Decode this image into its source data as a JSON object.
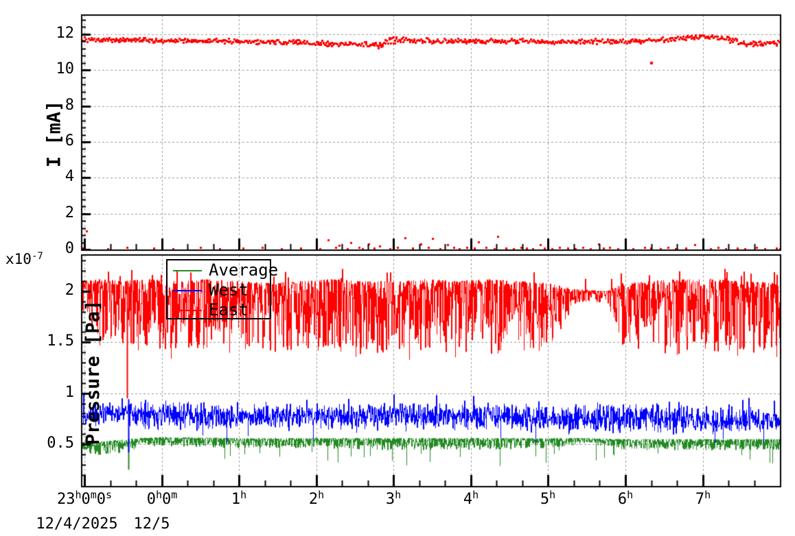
{
  "figure": {
    "background": "#ffffff",
    "axis_color": "#000000",
    "grid_color": "#9a9a9a"
  },
  "x_axis": {
    "range_hours_from_23h": [
      -0.036,
      9.008
    ],
    "minor_divisions_per_hour": 3,
    "ticks": [
      {
        "t": 0,
        "parts": [
          "23",
          "h",
          "0",
          "m",
          "0",
          "s"
        ]
      },
      {
        "t": 1,
        "parts": [
          "0",
          "h",
          "0",
          "m"
        ]
      },
      {
        "t": 2,
        "parts": [
          "1",
          "h"
        ]
      },
      {
        "t": 3,
        "parts": [
          "2",
          "h"
        ]
      },
      {
        "t": 4,
        "parts": [
          "3",
          "h"
        ]
      },
      {
        "t": 5,
        "parts": [
          "4",
          "h"
        ]
      },
      {
        "t": 6,
        "parts": [
          "5",
          "h"
        ]
      },
      {
        "t": 7,
        "parts": [
          "6",
          "h"
        ]
      },
      {
        "t": 8,
        "parts": [
          "7",
          "h"
        ]
      }
    ],
    "date_labels": [
      {
        "text": "12/4/2025",
        "t": -0.1
      },
      {
        "text": "12/5",
        "t": 0.87
      }
    ]
  },
  "legend": {
    "entries": [
      {
        "label": "Average",
        "color": "#228B22"
      },
      {
        "label": "West",
        "color": "#0000ff"
      },
      {
        "label": "East",
        "color": "#ff0000"
      }
    ]
  },
  "chart_data": [
    {
      "id": "beam-current",
      "type": "scatter",
      "ylabel": "I [mA]",
      "ylim": [
        0,
        13.07
      ],
      "yticks": [
        {
          "v": 0,
          "label": "0"
        },
        {
          "v": 2,
          "label": "2"
        },
        {
          "v": 4,
          "label": "4"
        },
        {
          "v": 6,
          "label": "6"
        },
        {
          "v": 8,
          "label": "8"
        },
        {
          "v": 10,
          "label": "10"
        },
        {
          "v": 12,
          "label": "12"
        }
      ],
      "y_minor_step": 0.4,
      "marker_color": "#ff0000",
      "band": {
        "t": [
          -0.04,
          0.5,
          1.0,
          1.5,
          2.0,
          2.5,
          3.0,
          3.3,
          3.6,
          3.85,
          3.9,
          4.1,
          4.4,
          4.8,
          5.2,
          5.6,
          6.0,
          6.4,
          6.8,
          7.2,
          7.5,
          7.8,
          8.0,
          8.15,
          8.35,
          8.55,
          8.75,
          9.01
        ],
        "mean": [
          11.7,
          11.7,
          11.67,
          11.65,
          11.62,
          11.58,
          11.52,
          11.47,
          11.42,
          11.4,
          11.66,
          11.68,
          11.64,
          11.62,
          11.62,
          11.64,
          11.62,
          11.6,
          11.62,
          11.65,
          11.7,
          11.8,
          11.86,
          11.85,
          11.72,
          11.5,
          11.47,
          11.56
        ],
        "spread": [
          0.06,
          0.06,
          0.06,
          0.06,
          0.06,
          0.07,
          0.07,
          0.07,
          0.07,
          0.07,
          0.12,
          0.1,
          0.08,
          0.07,
          0.07,
          0.07,
          0.07,
          0.07,
          0.07,
          0.06,
          0.07,
          0.07,
          0.07,
          0.08,
          0.1,
          0.09,
          0.08,
          0.07
        ]
      },
      "low_points": [
        [
          -0.02,
          0.06
        ],
        [
          0.03,
          1.02
        ],
        [
          0.3,
          0.05
        ],
        [
          0.55,
          0.1
        ],
        [
          0.9,
          0.06
        ],
        [
          1.0,
          0.28
        ],
        [
          1.15,
          0.05
        ],
        [
          1.5,
          0.1
        ],
        [
          1.75,
          0.05
        ],
        [
          2.0,
          0.32
        ],
        [
          2.05,
          0.06
        ],
        [
          2.3,
          0.1
        ],
        [
          2.55,
          0.05
        ],
        [
          2.8,
          0.08
        ],
        [
          3.0,
          0.3
        ],
        [
          3.05,
          0.05
        ],
        [
          3.15,
          0.55
        ],
        [
          3.25,
          0.1
        ],
        [
          3.3,
          0.22
        ],
        [
          3.4,
          0.05
        ],
        [
          3.45,
          0.38
        ],
        [
          3.55,
          0.12
        ],
        [
          3.6,
          0.05
        ],
        [
          3.68,
          0.3
        ],
        [
          3.75,
          0.08
        ],
        [
          3.82,
          0.18
        ],
        [
          3.95,
          0.05
        ],
        [
          4.0,
          0.45
        ],
        [
          4.05,
          0.1
        ],
        [
          4.15,
          0.65
        ],
        [
          4.25,
          0.06
        ],
        [
          4.35,
          0.3
        ],
        [
          4.45,
          0.1
        ],
        [
          4.5,
          0.6
        ],
        [
          4.6,
          0.05
        ],
        [
          4.7,
          0.25
        ],
        [
          4.78,
          0.1
        ],
        [
          4.85,
          0.05
        ],
        [
          4.95,
          0.12
        ],
        [
          5.05,
          0.06
        ],
        [
          5.1,
          0.42
        ],
        [
          5.2,
          0.1
        ],
        [
          5.3,
          0.05
        ],
        [
          5.35,
          0.72
        ],
        [
          5.45,
          0.08
        ],
        [
          5.55,
          0.05
        ],
        [
          5.65,
          0.1
        ],
        [
          5.72,
          0.06
        ],
        [
          5.8,
          0.05
        ],
        [
          5.9,
          0.28
        ],
        [
          5.95,
          0.08
        ],
        [
          6.05,
          0.05
        ],
        [
          6.15,
          0.1
        ],
        [
          6.25,
          0.06
        ],
        [
          6.35,
          0.05
        ],
        [
          6.45,
          0.12
        ],
        [
          6.55,
          0.05
        ],
        [
          6.65,
          0.3
        ],
        [
          6.72,
          0.06
        ],
        [
          6.8,
          0.1
        ],
        [
          6.9,
          0.05
        ],
        [
          7.0,
          0.08
        ],
        [
          7.1,
          0.05
        ],
        [
          7.25,
          0.1
        ],
        [
          7.33,
          0.06
        ],
        [
          7.45,
          0.05
        ],
        [
          7.55,
          0.1
        ],
        [
          7.65,
          0.05
        ],
        [
          7.78,
          0.08
        ],
        [
          7.9,
          0.26
        ],
        [
          8.0,
          0.06
        ],
        [
          8.1,
          0.05
        ],
        [
          8.2,
          0.1
        ],
        [
          8.3,
          0.05
        ],
        [
          8.45,
          0.08
        ],
        [
          8.55,
          0.05
        ],
        [
          8.7,
          0.1
        ],
        [
          8.8,
          0.05
        ],
        [
          8.95,
          0.07
        ],
        [
          9.0,
          0.05
        ]
      ],
      "outliers": [
        [
          7.33,
          10.42
        ]
      ]
    },
    {
      "id": "pressure",
      "type": "line",
      "ylabel": "Pressure [Pa]",
      "y_exponent_parts": [
        "x10",
        "-7"
      ],
      "ylim": [
        0.083,
        2.356
      ],
      "yticks": [
        {
          "v": 0.5,
          "label": "0.5"
        },
        {
          "v": 1,
          "label": "1"
        },
        {
          "v": 1.5,
          "label": "1.5"
        },
        {
          "v": 2,
          "label": "2"
        }
      ],
      "y_minor_step": 0.1,
      "series": [
        {
          "name": "Average",
          "color": "#228B22",
          "bias": "high",
          "t": [
            -0.04,
            0.15,
            0.4,
            0.7,
            1,
            2,
            3,
            4,
            5,
            6,
            6.5,
            7,
            8,
            9.01
          ],
          "lo": [
            0.44,
            0.38,
            0.4,
            0.46,
            0.48,
            0.46,
            0.46,
            0.44,
            0.44,
            0.46,
            0.5,
            0.44,
            0.44,
            0.44
          ],
          "hi": [
            0.52,
            0.52,
            0.54,
            0.56,
            0.57,
            0.56,
            0.56,
            0.56,
            0.56,
            0.56,
            0.56,
            0.55,
            0.55,
            0.55
          ],
          "spike_rate": 0.04,
          "spike_depth": 0.16,
          "up_rate": 0,
          "up_amp": 0,
          "spikes": [
            [
              0.57,
              0.25
            ]
          ]
        },
        {
          "name": "West",
          "color": "#0000ff",
          "bias": "mid",
          "t": [
            -0.04,
            1,
            2,
            3,
            4,
            5,
            6,
            7,
            8,
            9.01
          ],
          "lo": [
            0.68,
            0.62,
            0.63,
            0.62,
            0.63,
            0.62,
            0.6,
            0.58,
            0.58,
            0.58
          ],
          "hi": [
            0.93,
            0.95,
            0.93,
            0.92,
            0.95,
            0.92,
            0.9,
            0.92,
            0.9,
            0.9
          ],
          "spike_rate": 0.02,
          "spike_depth": 0.12,
          "up_rate": 0.01,
          "up_amp": 0.06,
          "spikes": [
            [
              0.57,
              0.42
            ]
          ]
        },
        {
          "name": "East",
          "color": "#ff0000",
          "bias": "high",
          "t": [
            -0.04,
            0.2,
            0.5,
            0.8,
            1.2,
            1.6,
            2.0,
            2.4,
            2.8,
            3.2,
            3.6,
            4.0,
            4.4,
            4.8,
            5.2,
            5.6,
            6.0,
            6.35,
            6.5,
            6.75,
            6.95,
            7.3,
            7.7,
            8.1,
            8.5,
            9.01
          ],
          "lo": [
            1.82,
            1.5,
            1.45,
            1.42,
            1.4,
            1.44,
            1.42,
            1.4,
            1.42,
            1.4,
            1.38,
            1.4,
            1.38,
            1.4,
            1.38,
            1.4,
            1.42,
            1.88,
            1.9,
            1.88,
            1.45,
            1.4,
            1.38,
            1.4,
            1.38,
            1.4
          ],
          "hi": [
            2.1,
            2.12,
            2.1,
            2.12,
            2.1,
            2.12,
            2.1,
            2.08,
            2.1,
            2.12,
            2.1,
            2.1,
            2.12,
            2.1,
            2.12,
            2.1,
            2.08,
            2.02,
            2.02,
            2.0,
            2.08,
            2.1,
            2.12,
            2.12,
            2.1,
            2.08
          ],
          "spike_rate": 0.01,
          "spike_depth": 0.08,
          "up_rate": 0.03,
          "up_amp": 0.11,
          "spikes": [
            [
              0.55,
              0.95
            ]
          ]
        }
      ]
    }
  ]
}
